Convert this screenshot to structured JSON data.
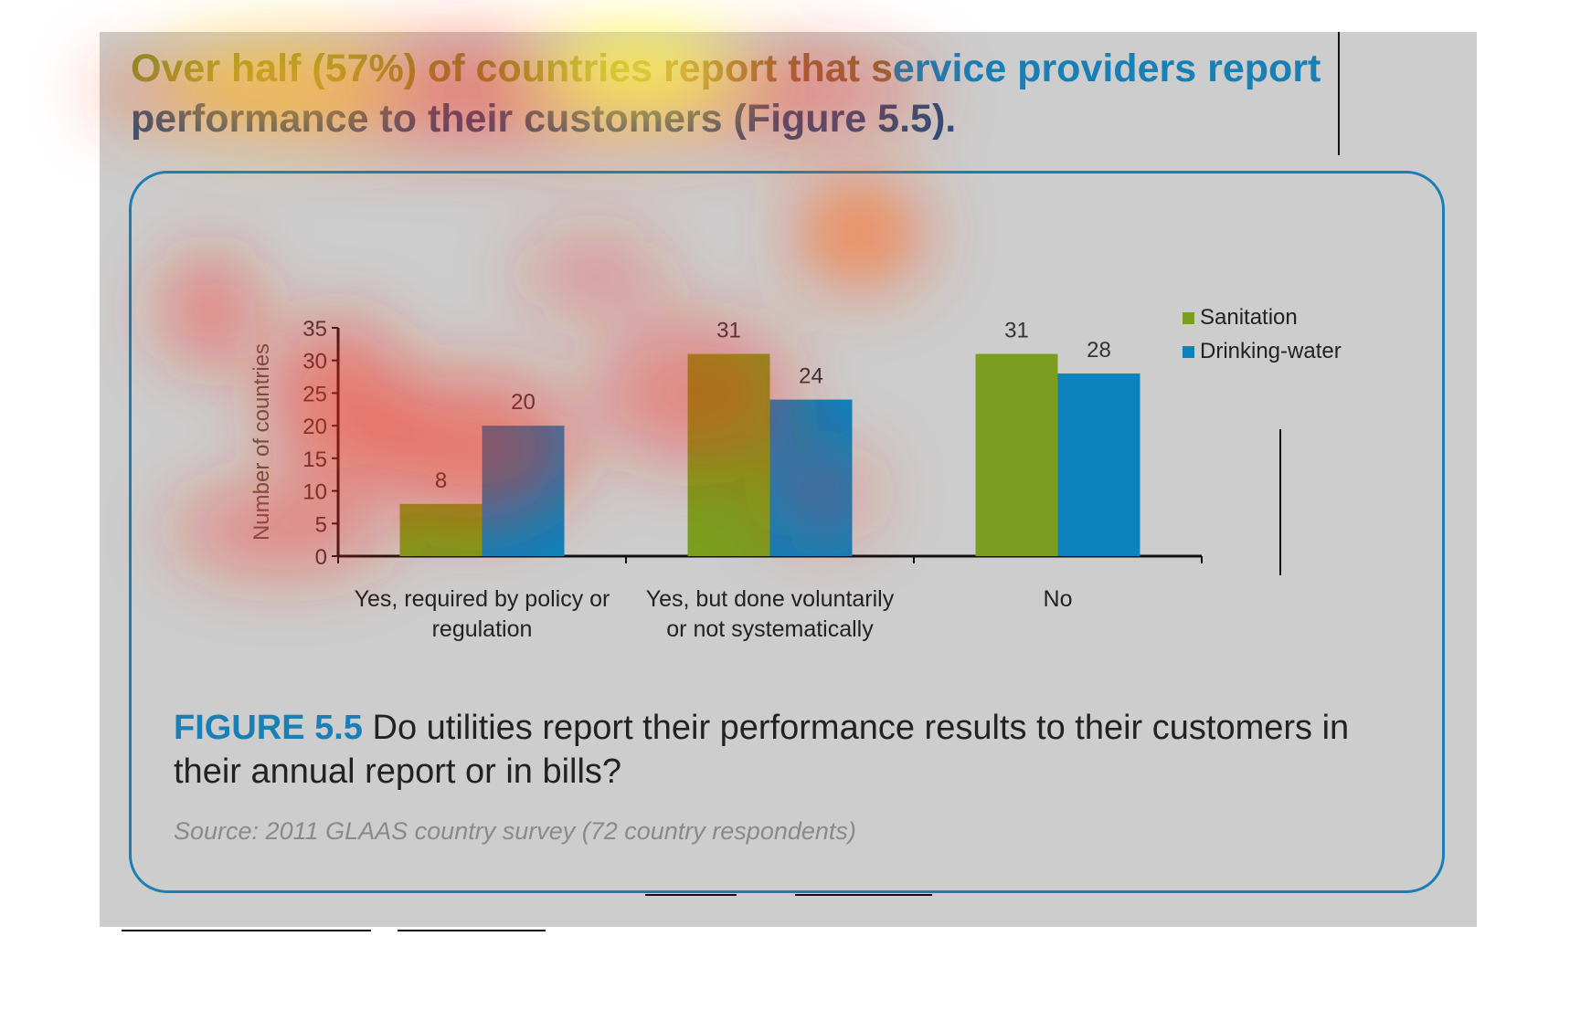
{
  "heading": {
    "lead": "Over half (57%) of countries",
    "mid": " report that s",
    "highlight": "ervice providers report",
    "tail": " performance to their customers (Figure 5.5)."
  },
  "caption": {
    "figure_label": "FIGURE 5.5",
    "text": " Do utilities report their performance results to their customers in their annual report or in bills?"
  },
  "source": "Source: 2011 GLAAS country survey (72 country respondents)",
  "colors": {
    "sanitation": "#7a9e1f",
    "drinking_water": "#0e82bd",
    "accent": "#1a7fb4",
    "panel": "#cdcdcd"
  },
  "chart_data": {
    "type": "bar",
    "categories": [
      [
        "Yes, required by policy or",
        "regulation"
      ],
      [
        "Yes, but done voluntarily",
        "or not systematically"
      ],
      [
        "No"
      ]
    ],
    "series": [
      {
        "name": "Sanitation",
        "values": [
          8,
          31,
          31
        ]
      },
      {
        "name": "Drinking-water",
        "values": [
          20,
          24,
          28
        ]
      }
    ],
    "ylabel": "Number of countries",
    "ylim": [
      0,
      35
    ],
    "yticks": [
      0,
      5,
      10,
      15,
      20,
      25,
      30,
      35
    ],
    "data_labels": true,
    "legend": "right",
    "grid": false
  }
}
